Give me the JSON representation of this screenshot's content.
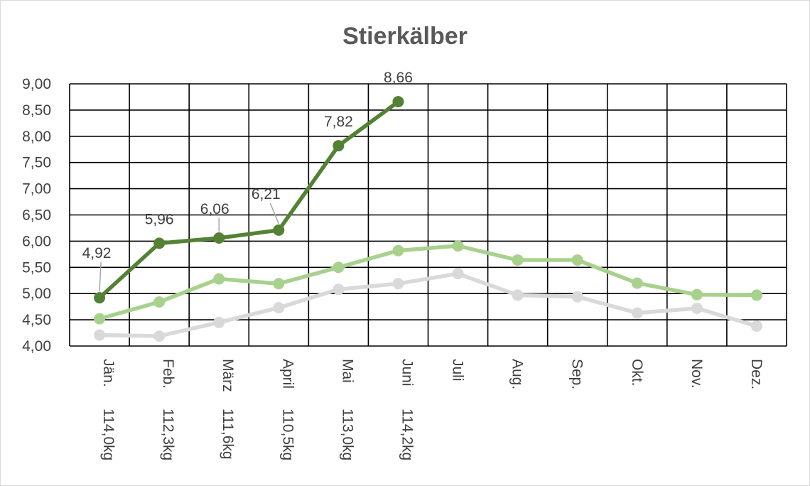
{
  "chart_data": {
    "type": "line",
    "title": "Stierkälber",
    "xlabel": "",
    "ylabel": "",
    "ylim": [
      4.0,
      9.0
    ],
    "y_ticks": [
      "4,00",
      "4,50",
      "5,00",
      "5,50",
      "6,00",
      "6,50",
      "7,00",
      "7,50",
      "8,00",
      "8,50",
      "9,00"
    ],
    "categories": [
      [
        "Jän.",
        "114,0kg"
      ],
      [
        "Feb.",
        "112,3kg"
      ],
      [
        "März",
        "111,6kg"
      ],
      [
        "April",
        "110,5kg"
      ],
      [
        "Mai",
        "113,0kg"
      ],
      [
        "Juni",
        "114,2kg"
      ],
      [
        "Juli",
        ""
      ],
      [
        "Aug.",
        ""
      ],
      [
        "Sep.",
        ""
      ],
      [
        "Okt.",
        ""
      ],
      [
        "Nov.",
        ""
      ],
      [
        "Dez.",
        ""
      ]
    ],
    "grid": true,
    "legend": "none",
    "series": [
      {
        "color": "#d9d9d9",
        "values": [
          4.21,
          4.19,
          4.45,
          4.73,
          5.08,
          5.19,
          5.38,
          4.97,
          4.94,
          4.63,
          4.72,
          4.38
        ]
      },
      {
        "color": "#a9d18e",
        "values": [
          4.52,
          4.84,
          5.28,
          5.19,
          5.5,
          5.82,
          5.91,
          5.64,
          5.64,
          5.2,
          4.98,
          4.97
        ]
      },
      {
        "color": "#548235",
        "values": [
          4.92,
          5.96,
          6.06,
          6.21,
          7.82,
          8.66,
          null,
          null,
          null,
          null,
          null,
          null
        ],
        "data_labels": [
          "4,92",
          "5,96",
          "6,06",
          "6,21",
          "7,82",
          "8,66"
        ]
      }
    ]
  }
}
